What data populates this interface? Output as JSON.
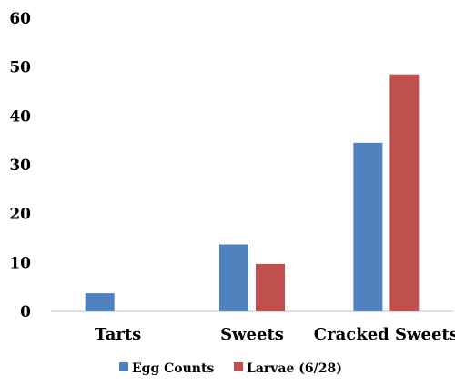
{
  "chart_data": {
    "type": "bar",
    "title": "",
    "xlabel": "",
    "ylabel": "",
    "categories": [
      "Tarts",
      "Sweets",
      "Cracked Sweets"
    ],
    "series": [
      {
        "name": "Egg Counts",
        "color": "#4F81BD",
        "values": [
          3.7,
          13.7,
          34.5
        ]
      },
      {
        "name": "Larvae (6/28)",
        "color": "#C0504D",
        "values": [
          0,
          9.7,
          48.5
        ]
      }
    ],
    "ylim": [
      0,
      60
    ],
    "yticks": [
      0,
      10,
      20,
      30,
      40,
      50,
      60
    ],
    "grid": false,
    "legend_position": "bottom"
  }
}
